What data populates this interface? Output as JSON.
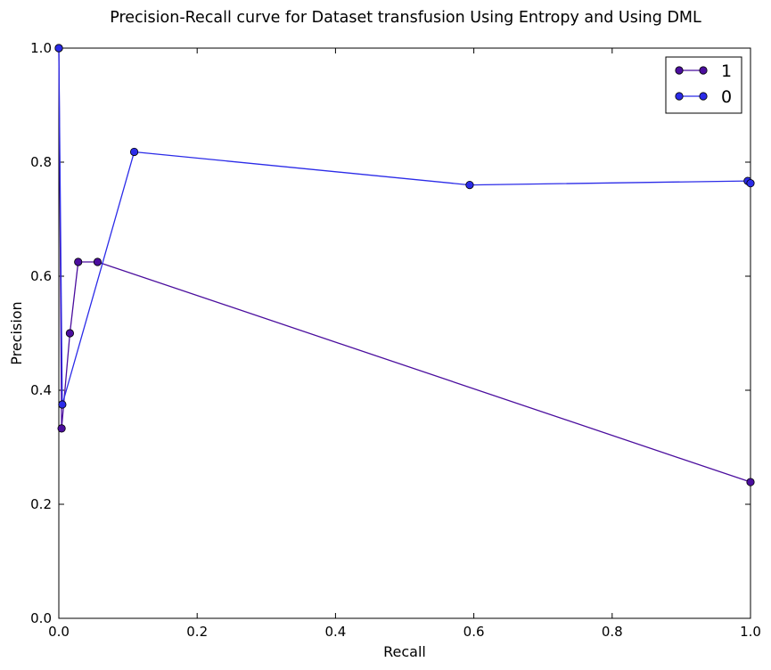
{
  "chart_data": {
    "type": "line",
    "title": "Precision-Recall curve for Dataset transfusion Using Entropy and Using DML",
    "xlabel": "Recall",
    "ylabel": "Precision",
    "xlim": [
      0.0,
      1.0
    ],
    "ylim": [
      0.0,
      1.0
    ],
    "xticks": [
      0.0,
      0.2,
      0.4,
      0.6,
      0.8,
      1.0
    ],
    "yticks": [
      0.0,
      0.2,
      0.4,
      0.6,
      0.8,
      1.0
    ],
    "xtick_labels": [
      "0.0",
      "0.2",
      "0.4",
      "0.6",
      "0.8",
      "1.0"
    ],
    "ytick_labels": [
      "0.0",
      "0.2",
      "0.4",
      "0.6",
      "0.8",
      "1.0"
    ],
    "grid": false,
    "legend_position": "top-right",
    "series": [
      {
        "name": "1",
        "color": "#4b0e9e",
        "x": [
          0.0,
          0.004,
          0.016,
          0.028,
          0.056,
          1.0
        ],
        "y": [
          1.0,
          0.333,
          0.5,
          0.625,
          0.625,
          0.239
        ]
      },
      {
        "name": "0",
        "color": "#2b2be8",
        "x": [
          0.0,
          0.005,
          0.109,
          0.594,
          0.996,
          1.0
        ],
        "y": [
          1.0,
          0.375,
          0.818,
          0.76,
          0.767,
          0.763
        ]
      }
    ]
  }
}
